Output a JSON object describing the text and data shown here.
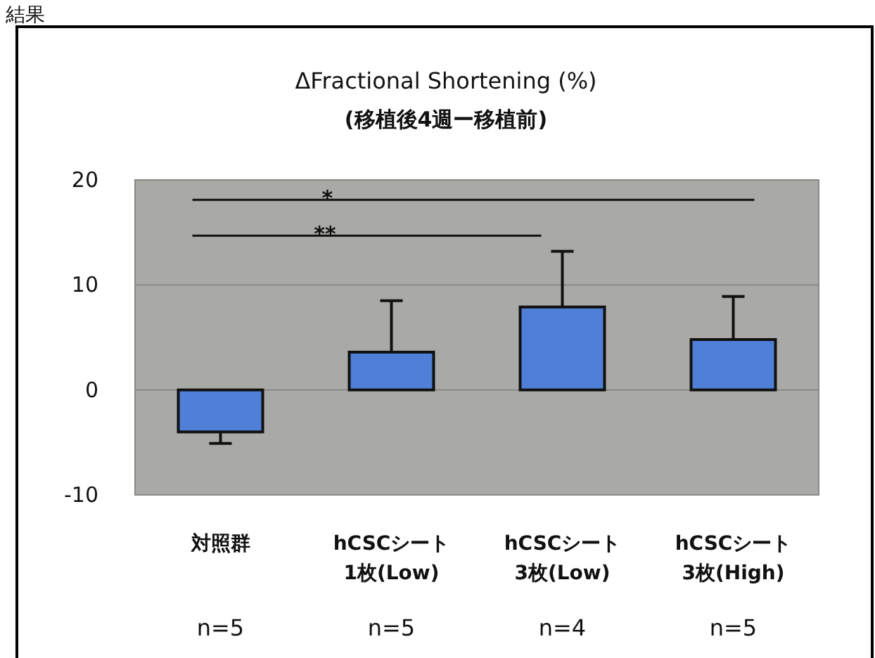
{
  "chart_data": {
    "type": "bar",
    "title": "ΔFractional Shortening (%)",
    "subtitle": "(移植後4週ー移植前)",
    "categories": [
      "対照群",
      "hCSCシート 1枚(Low)",
      "hCSCシート 3枚(Low)",
      "hCSCシート 3枚(High)"
    ],
    "values": [
      -4.0,
      3.6,
      7.9,
      4.8
    ],
    "color": "#4f7fd6",
    "errors": [
      [
        -5.1,
        -4.0
      ],
      [
        3.6,
        8.5
      ],
      [
        7.9,
        13.2
      ],
      [
        4.8,
        8.9
      ]
    ],
    "ylim": [
      -10,
      20
    ],
    "yticks": [
      -10,
      0,
      10,
      20
    ],
    "grid": "y",
    "ref_lines": [
      {
        "axis": "y",
        "value": 18.1,
        "label": "*",
        "color": "#111111"
      },
      {
        "axis": "y",
        "value": 14.7,
        "label": "**",
        "color": "#111111"
      }
    ],
    "annotations": [
      "結果",
      "n=5",
      "n=5",
      "n=4",
      "n=5"
    ]
  }
}
